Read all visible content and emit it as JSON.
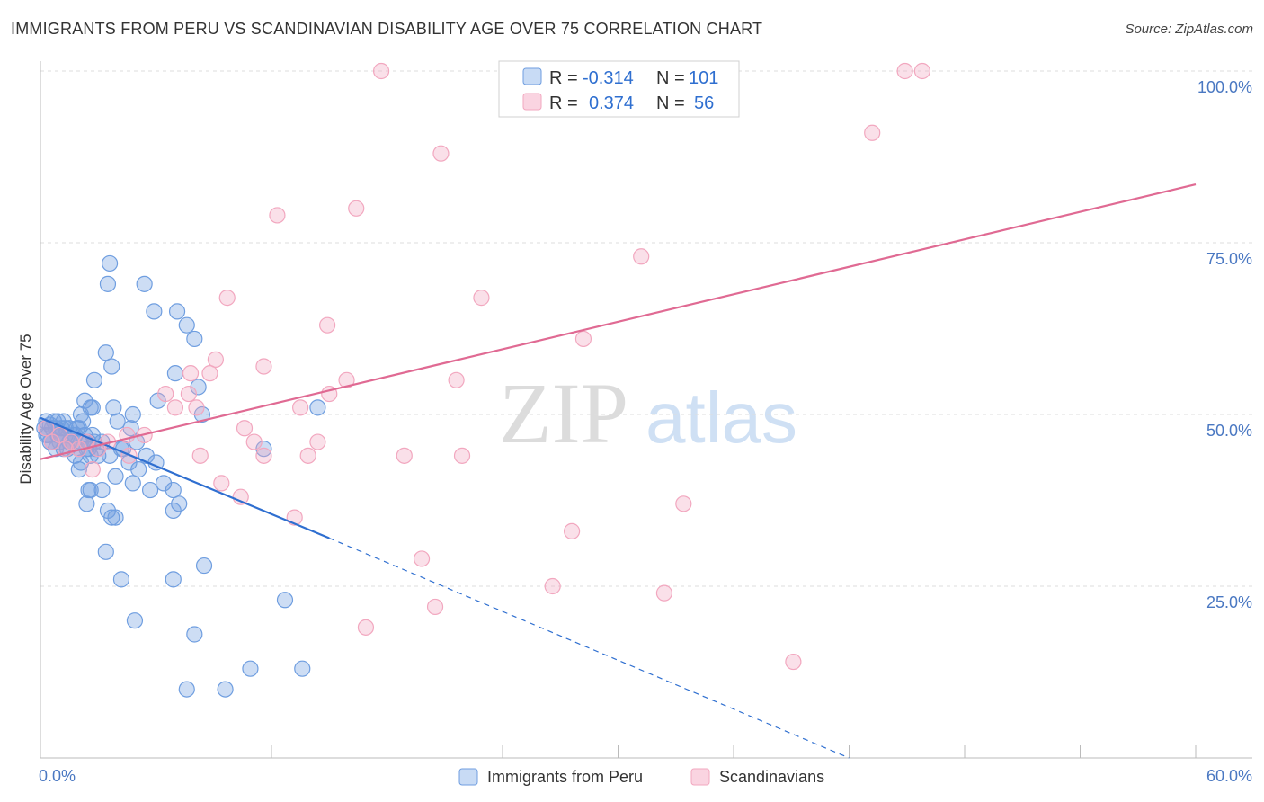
{
  "title": "IMMIGRANTS FROM PERU VS SCANDINAVIAN DISABILITY AGE OVER 75 CORRELATION CHART",
  "source": "Source: ZipAtlas.com",
  "watermark": {
    "zip": "ZIP",
    "atlas": "atlas"
  },
  "colors": {
    "blue": "#6f9ee0",
    "blue_line": "#2f6fd0",
    "pink": "#f2a7bf",
    "pink_line": "#e06a93",
    "axis_text": "#4a78c2"
  },
  "legend_top": [
    {
      "r_label": "R =",
      "r_value": "-0.314",
      "n_label": "N =",
      "n_value": "101"
    },
    {
      "r_label": "R =",
      "r_value": "0.374",
      "n_label": "N =",
      "n_value": "56"
    }
  ],
  "chart_data": {
    "type": "scatter",
    "title": "IMMIGRANTS FROM PERU VS SCANDINAVIAN DISABILITY AGE OVER 75 CORRELATION CHART",
    "xlabel": "",
    "ylabel": "Disability Age Over 75",
    "xlim": [
      0,
      60
    ],
    "ylim": [
      0,
      100
    ],
    "x_tick_labels": [
      "0.0%",
      "60.0%"
    ],
    "y_ticks": [
      25,
      50,
      75,
      100
    ],
    "y_tick_labels": [
      "25.0%",
      "50.0%",
      "75.0%",
      "100.0%"
    ],
    "series": [
      {
        "name": "Immigrants from Peru",
        "color": "blue",
        "points": [
          [
            0.2,
            48
          ],
          [
            0.3,
            49
          ],
          [
            0.4,
            47
          ],
          [
            0.5,
            48.5
          ],
          [
            0.6,
            46
          ],
          [
            0.7,
            49
          ],
          [
            0.8,
            48
          ],
          [
            0.9,
            47
          ],
          [
            1.0,
            46
          ],
          [
            1.1,
            48
          ],
          [
            1.2,
            49
          ],
          [
            1.3,
            47
          ],
          [
            1.4,
            45
          ],
          [
            1.5,
            48
          ],
          [
            1.6,
            46
          ],
          [
            1.7,
            47
          ],
          [
            1.8,
            44
          ],
          [
            1.9,
            48
          ],
          [
            2.0,
            45
          ],
          [
            2.1,
            46
          ],
          [
            2.2,
            49
          ],
          [
            2.3,
            47
          ],
          [
            2.4,
            45
          ],
          [
            2.5,
            46
          ],
          [
            2.6,
            44
          ],
          [
            2.7,
            47
          ],
          [
            2.8,
            46
          ],
          [
            2.9,
            45
          ],
          [
            3.0,
            44
          ],
          [
            0.5,
            46
          ],
          [
            0.8,
            45
          ],
          [
            1.0,
            47
          ],
          [
            1.3,
            48
          ],
          [
            1.5,
            46
          ],
          [
            1.8,
            47
          ],
          [
            2.0,
            48
          ],
          [
            0.3,
            47
          ],
          [
            0.6,
            48
          ],
          [
            1.2,
            45
          ],
          [
            0.9,
            49
          ],
          [
            3.6,
            72
          ],
          [
            3.5,
            69
          ],
          [
            5.4,
            69
          ],
          [
            5.9,
            65
          ],
          [
            7.1,
            65
          ],
          [
            7.6,
            63
          ],
          [
            8.0,
            61
          ],
          [
            3.4,
            59
          ],
          [
            3.7,
            57
          ],
          [
            2.8,
            55
          ],
          [
            7.0,
            56
          ],
          [
            8.2,
            54
          ],
          [
            6.1,
            52
          ],
          [
            2.3,
            52
          ],
          [
            2.6,
            51
          ],
          [
            3.8,
            51
          ],
          [
            2.7,
            51
          ],
          [
            4.0,
            49
          ],
          [
            8.4,
            50
          ],
          [
            4.8,
            50
          ],
          [
            2.1,
            50
          ],
          [
            4.7,
            48
          ],
          [
            3.2,
            46
          ],
          [
            4.3,
            45
          ],
          [
            5.0,
            46
          ],
          [
            2.5,
            45
          ],
          [
            3.6,
            44
          ],
          [
            4.2,
            45
          ],
          [
            5.5,
            44
          ],
          [
            4.6,
            43
          ],
          [
            6.0,
            43
          ],
          [
            5.1,
            42
          ],
          [
            2.0,
            42
          ],
          [
            3.9,
            41
          ],
          [
            4.8,
            40
          ],
          [
            6.4,
            40
          ],
          [
            5.7,
            39
          ],
          [
            2.6,
            39
          ],
          [
            2.5,
            39
          ],
          [
            3.2,
            39
          ],
          [
            6.9,
            39
          ],
          [
            7.2,
            37
          ],
          [
            6.9,
            36
          ],
          [
            3.5,
            36
          ],
          [
            3.9,
            35
          ],
          [
            3.7,
            35
          ],
          [
            3.4,
            30
          ],
          [
            2.4,
            37
          ],
          [
            8.5,
            28
          ],
          [
            4.2,
            26
          ],
          [
            6.9,
            26
          ],
          [
            12.7,
            23
          ],
          [
            4.9,
            20
          ],
          [
            8.0,
            18
          ],
          [
            11.6,
            45
          ],
          [
            14.4,
            51
          ],
          [
            7.6,
            10
          ],
          [
            9.6,
            10
          ],
          [
            10.9,
            13
          ],
          [
            13.6,
            13
          ],
          [
            2.1,
            43
          ]
        ]
      },
      {
        "name": "Scandinavians",
        "color": "pink",
        "points": [
          [
            0.3,
            48
          ],
          [
            0.6,
            46
          ],
          [
            1.0,
            47
          ],
          [
            1.3,
            45
          ],
          [
            1.6,
            46
          ],
          [
            2.0,
            45
          ],
          [
            2.4,
            46
          ],
          [
            3.0,
            45
          ],
          [
            3.5,
            46
          ],
          [
            4.5,
            47
          ],
          [
            6.5,
            53
          ],
          [
            7.0,
            51
          ],
          [
            7.7,
            53
          ],
          [
            8.1,
            51
          ],
          [
            8.8,
            56
          ],
          [
            9.7,
            67
          ],
          [
            11.6,
            57
          ],
          [
            11.6,
            44
          ],
          [
            12.3,
            79
          ],
          [
            13.5,
            51
          ],
          [
            14.9,
            63
          ],
          [
            15.0,
            53
          ],
          [
            15.9,
            55
          ],
          [
            16.4,
            80
          ],
          [
            17.7,
            100
          ],
          [
            18.9,
            44
          ],
          [
            20.8,
            88
          ],
          [
            21.6,
            55
          ],
          [
            21.9,
            44
          ],
          [
            22.9,
            67
          ],
          [
            7.8,
            56
          ],
          [
            9.1,
            58
          ],
          [
            10.6,
            48
          ],
          [
            11.1,
            46
          ],
          [
            13.9,
            44
          ],
          [
            14.4,
            46
          ],
          [
            8.3,
            44
          ],
          [
            9.4,
            40
          ],
          [
            10.4,
            38
          ],
          [
            13.2,
            35
          ],
          [
            16.9,
            19
          ],
          [
            19.8,
            29
          ],
          [
            20.5,
            22
          ],
          [
            26.6,
            25
          ],
          [
            27.6,
            33
          ],
          [
            28.2,
            61
          ],
          [
            31.2,
            73
          ],
          [
            32.4,
            24
          ],
          [
            33.4,
            37
          ],
          [
            39.1,
            14
          ],
          [
            43.2,
            91
          ],
          [
            44.9,
            100
          ],
          [
            45.8,
            100
          ],
          [
            2.7,
            42
          ],
          [
            5.4,
            47
          ],
          [
            4.6,
            44
          ]
        ]
      }
    ],
    "trend_lines": [
      {
        "series": "Immigrants from Peru",
        "from": [
          0,
          49.5
        ],
        "to": [
          15,
          32
        ],
        "dashed_to": [
          42,
          0
        ]
      },
      {
        "series": "Scandinavians",
        "from": [
          0,
          43.5
        ],
        "to": [
          60,
          83.5
        ]
      }
    ]
  },
  "legend_bottom": [
    "Immigrants from Peru",
    "Scandinavians"
  ]
}
